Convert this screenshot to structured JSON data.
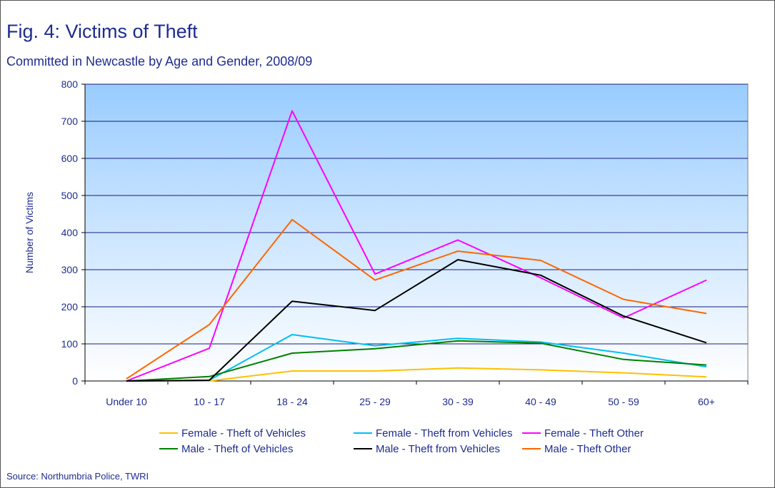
{
  "header": {
    "title": "Fig. 4: Victims of Theft",
    "subtitle": "Committed in Newcastle by Age and Gender, 2008/09"
  },
  "footer": {
    "source": "Source: Northumbria Police, TWRI"
  },
  "chart_data": {
    "type": "line",
    "title": "Fig. 4: Victims of Theft",
    "subtitle": "Committed in Newcastle by Age and Gender, 2008/09",
    "xlabel": "",
    "ylabel": "Number of Victims",
    "ylim": [
      0,
      800
    ],
    "yticks": [
      0,
      100,
      200,
      300,
      400,
      500,
      600,
      700,
      800
    ],
    "grid": true,
    "legend_position": "bottom",
    "categories": [
      "Under 10",
      "10 - 17",
      "18 - 24",
      "25 - 29",
      "30 - 39",
      "40 - 49",
      "50 - 59",
      "60+"
    ],
    "series": [
      {
        "name": "Female - Theft of Vehicles",
        "color": "#ffc000",
        "values": [
          0,
          0,
          27,
          27,
          35,
          30,
          22,
          11
        ]
      },
      {
        "name": "Female - Theft from Vehicles",
        "color": "#00c0f0",
        "values": [
          0,
          2,
          125,
          95,
          115,
          105,
          75,
          38
        ]
      },
      {
        "name": "Female - Theft Other",
        "color": "#ff00ff",
        "values": [
          0,
          88,
          728,
          288,
          380,
          278,
          170,
          272
        ]
      },
      {
        "name": "Male - Theft of Vehicles",
        "color": "#008000",
        "values": [
          0,
          12,
          75,
          87,
          108,
          102,
          58,
          43
        ]
      },
      {
        "name": "Male - Theft from Vehicles",
        "color": "#000000",
        "values": [
          0,
          2,
          215,
          190,
          327,
          285,
          175,
          103
        ]
      },
      {
        "name": "Male - Theft Other",
        "color": "#ff6600",
        "values": [
          6,
          152,
          435,
          272,
          350,
          325,
          220,
          182
        ]
      }
    ],
    "plot_background": [
      "#99ccff",
      "#ffffff"
    ]
  }
}
